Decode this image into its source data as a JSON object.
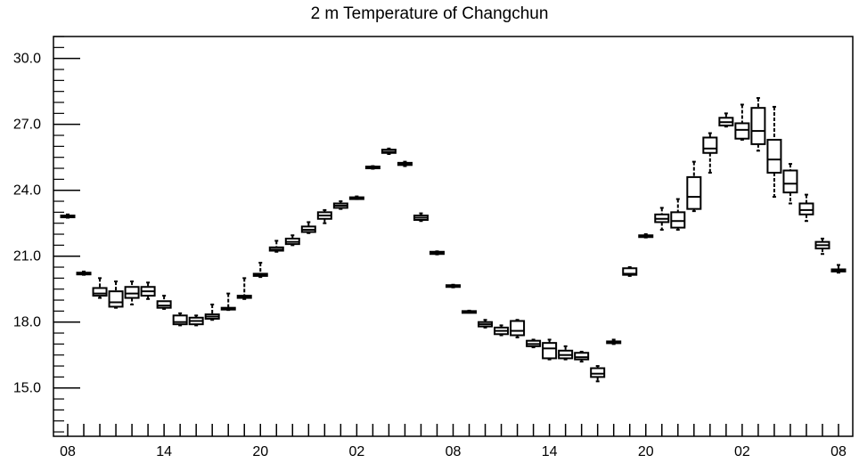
{
  "chart_data": {
    "type": "boxplot",
    "title": "2 m Temperature of Changchun",
    "xlabel": "",
    "ylabel": "",
    "ylim": [
      12.8,
      31.0
    ],
    "yticks": [
      15.0,
      18.0,
      21.0,
      24.0,
      27.0,
      30.0
    ],
    "ytick_labels": [
      "15.0",
      "18.0",
      "21.0",
      "24.0",
      "27.0",
      "30.0"
    ],
    "x_range": [
      0,
      48
    ],
    "xtick_labels": [
      {
        "x": 0,
        "label": "08"
      },
      {
        "x": 6,
        "label": "14"
      },
      {
        "x": 12,
        "label": "20"
      },
      {
        "x": 18,
        "label": "02"
      },
      {
        "x": 24,
        "label": "08"
      },
      {
        "x": 30,
        "label": "14"
      },
      {
        "x": 36,
        "label": "20"
      },
      {
        "x": 42,
        "label": "02"
      },
      {
        "x": 48,
        "label": "08"
      }
    ],
    "grid": false,
    "boxes": [
      {
        "x": 0,
        "min": 22.75,
        "q1": 22.8,
        "median": 22.82,
        "q3": 22.85,
        "max": 22.9
      },
      {
        "x": 1,
        "min": 20.15,
        "q1": 20.2,
        "median": 20.22,
        "q3": 20.25,
        "max": 20.3
      },
      {
        "x": 2,
        "min": 19.1,
        "q1": 19.2,
        "median": 19.3,
        "q3": 19.55,
        "max": 20.0
      },
      {
        "x": 3,
        "min": 18.65,
        "q1": 18.7,
        "median": 18.9,
        "q3": 19.4,
        "max": 19.85
      },
      {
        "x": 4,
        "min": 18.8,
        "q1": 19.1,
        "median": 19.3,
        "q3": 19.6,
        "max": 19.85
      },
      {
        "x": 5,
        "min": 19.05,
        "q1": 19.2,
        "median": 19.4,
        "q3": 19.6,
        "max": 19.8
      },
      {
        "x": 6,
        "min": 18.6,
        "q1": 18.65,
        "median": 18.75,
        "q3": 18.95,
        "max": 19.2
      },
      {
        "x": 7,
        "min": 17.85,
        "q1": 17.9,
        "median": 18.0,
        "q3": 18.3,
        "max": 18.4
      },
      {
        "x": 8,
        "min": 17.85,
        "q1": 17.9,
        "median": 18.05,
        "q3": 18.2,
        "max": 18.3
      },
      {
        "x": 9,
        "min": 18.1,
        "q1": 18.15,
        "median": 18.25,
        "q3": 18.35,
        "max": 18.8
      },
      {
        "x": 10,
        "min": 18.55,
        "q1": 18.6,
        "median": 18.62,
        "q3": 18.65,
        "max": 19.3
      },
      {
        "x": 11,
        "min": 19.05,
        "q1": 19.1,
        "median": 19.15,
        "q3": 19.2,
        "max": 20.0
      },
      {
        "x": 12,
        "min": 20.05,
        "q1": 20.1,
        "median": 20.15,
        "q3": 20.2,
        "max": 20.7
      },
      {
        "x": 13,
        "min": 21.2,
        "q1": 21.25,
        "median": 21.3,
        "q3": 21.4,
        "max": 21.7
      },
      {
        "x": 14,
        "min": 21.5,
        "q1": 21.55,
        "median": 21.65,
        "q3": 21.8,
        "max": 21.95
      },
      {
        "x": 15,
        "min": 22.05,
        "q1": 22.1,
        "median": 22.2,
        "q3": 22.35,
        "max": 22.55
      },
      {
        "x": 16,
        "min": 22.5,
        "q1": 22.7,
        "median": 22.85,
        "q3": 23.0,
        "max": 23.1
      },
      {
        "x": 17,
        "min": 23.15,
        "q1": 23.2,
        "median": 23.3,
        "q3": 23.4,
        "max": 23.5
      },
      {
        "x": 18,
        "min": 23.6,
        "q1": 23.62,
        "median": 23.65,
        "q3": 23.68,
        "max": 23.72
      },
      {
        "x": 19,
        "min": 24.98,
        "q1": 25.0,
        "median": 25.05,
        "q3": 25.08,
        "max": 25.1
      },
      {
        "x": 20,
        "min": 25.65,
        "q1": 25.7,
        "median": 25.75,
        "q3": 25.85,
        "max": 25.9
      },
      {
        "x": 21,
        "min": 25.1,
        "q1": 25.15,
        "median": 25.2,
        "q3": 25.25,
        "max": 25.3
      },
      {
        "x": 22,
        "min": 22.6,
        "q1": 22.65,
        "median": 22.75,
        "q3": 22.85,
        "max": 22.95
      },
      {
        "x": 23,
        "min": 21.08,
        "q1": 21.1,
        "median": 21.15,
        "q3": 21.2,
        "max": 21.22
      },
      {
        "x": 24,
        "min": 19.58,
        "q1": 19.6,
        "median": 19.65,
        "q3": 19.68,
        "max": 19.7
      },
      {
        "x": 25,
        "min": 18.43,
        "q1": 18.45,
        "median": 18.48,
        "q3": 18.5,
        "max": 18.52
      },
      {
        "x": 26,
        "min": 17.75,
        "q1": 17.8,
        "median": 17.9,
        "q3": 18.0,
        "max": 18.1
      },
      {
        "x": 27,
        "min": 17.4,
        "q1": 17.45,
        "median": 17.6,
        "q3": 17.75,
        "max": 17.85
      },
      {
        "x": 28,
        "min": 17.3,
        "q1": 17.4,
        "median": 17.6,
        "q3": 18.05,
        "max": 18.1
      },
      {
        "x": 29,
        "min": 16.85,
        "q1": 16.9,
        "median": 17.0,
        "q3": 17.15,
        "max": 17.2
      },
      {
        "x": 30,
        "min": 16.3,
        "q1": 16.35,
        "median": 16.8,
        "q3": 17.05,
        "max": 17.2
      },
      {
        "x": 31,
        "min": 16.3,
        "q1": 16.35,
        "median": 16.5,
        "q3": 16.7,
        "max": 16.9
      },
      {
        "x": 32,
        "min": 16.2,
        "q1": 16.3,
        "median": 16.4,
        "q3": 16.6,
        "max": 16.65
      },
      {
        "x": 33,
        "min": 15.3,
        "q1": 15.5,
        "median": 15.65,
        "q3": 15.9,
        "max": 16.0
      },
      {
        "x": 34,
        "min": 17.0,
        "q1": 17.05,
        "median": 17.08,
        "q3": 17.12,
        "max": 17.2
      },
      {
        "x": 35,
        "min": 20.1,
        "q1": 20.15,
        "median": 20.2,
        "q3": 20.45,
        "max": 20.5
      },
      {
        "x": 36,
        "min": 21.85,
        "q1": 21.9,
        "median": 21.92,
        "q3": 21.95,
        "max": 22.0
      },
      {
        "x": 37,
        "min": 22.2,
        "q1": 22.55,
        "median": 22.7,
        "q3": 22.9,
        "max": 23.2
      },
      {
        "x": 38,
        "min": 22.2,
        "q1": 22.3,
        "median": 22.6,
        "q3": 23.0,
        "max": 23.6
      },
      {
        "x": 39,
        "min": 23.05,
        "q1": 23.15,
        "median": 23.7,
        "q3": 24.6,
        "max": 25.3
      },
      {
        "x": 40,
        "min": 24.8,
        "q1": 25.7,
        "median": 25.9,
        "q3": 26.4,
        "max": 26.6
      },
      {
        "x": 41,
        "min": 26.9,
        "q1": 26.95,
        "median": 27.1,
        "q3": 27.3,
        "max": 27.5
      },
      {
        "x": 42,
        "min": 26.3,
        "q1": 26.35,
        "median": 26.75,
        "q3": 27.05,
        "max": 27.9
      },
      {
        "x": 43,
        "min": 25.8,
        "q1": 26.1,
        "median": 26.7,
        "q3": 27.75,
        "max": 28.2
      },
      {
        "x": 44,
        "min": 23.7,
        "q1": 24.8,
        "median": 25.4,
        "q3": 26.3,
        "max": 27.8
      },
      {
        "x": 45,
        "min": 23.4,
        "q1": 23.9,
        "median": 24.3,
        "q3": 24.9,
        "max": 25.2
      },
      {
        "x": 46,
        "min": 22.6,
        "q1": 22.9,
        "median": 23.1,
        "q3": 23.4,
        "max": 23.8
      },
      {
        "x": 47,
        "min": 21.1,
        "q1": 21.35,
        "median": 21.5,
        "q3": 21.65,
        "max": 21.8
      },
      {
        "x": 48,
        "min": 20.25,
        "q1": 20.3,
        "median": 20.35,
        "q3": 20.4,
        "max": 20.6
      }
    ]
  }
}
